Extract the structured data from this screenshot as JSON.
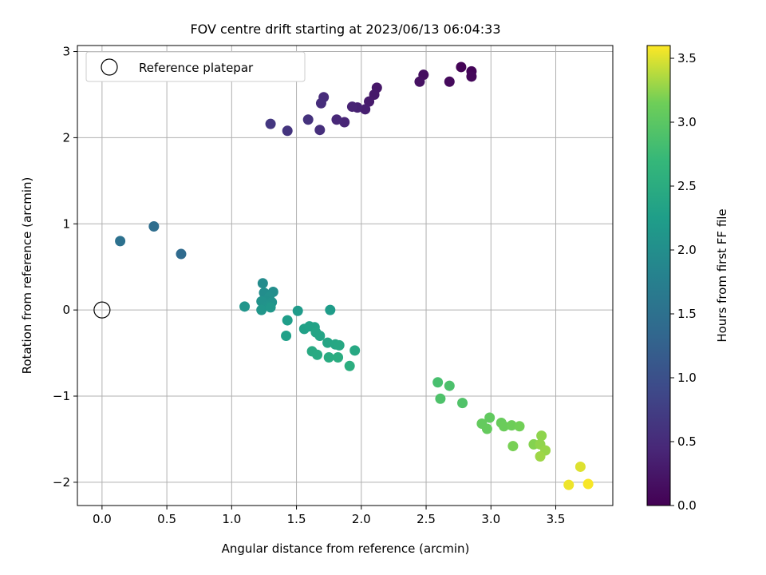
{
  "chart_data": {
    "type": "scatter",
    "title": "FOV centre drift starting at 2023/06/13 06:04:33",
    "xlabel": "Angular distance from reference (arcmin)",
    "ylabel": "Rotation from reference (arcmin)",
    "xlim": [
      -0.19,
      3.94
    ],
    "ylim": [
      -2.27,
      3.07
    ],
    "xticks": [
      0.0,
      0.5,
      1.0,
      1.5,
      2.0,
      2.5,
      3.0,
      3.5
    ],
    "xtick_labels": [
      "0.0",
      "0.5",
      "1.0",
      "1.5",
      "2.0",
      "2.5",
      "3.0",
      "3.5"
    ],
    "yticks": [
      -2,
      -1,
      0,
      1,
      2,
      3
    ],
    "ytick_labels": [
      "−2",
      "−1",
      "0",
      "1",
      "2",
      "3"
    ],
    "grid": true,
    "legend": {
      "position": "upper-left",
      "entries": [
        "Reference platepar"
      ]
    },
    "reference_point": {
      "x": 0.0,
      "y": 0.0
    },
    "colorbar": {
      "label": "Hours from first FF file",
      "colormap": "viridis",
      "range": [
        0.0,
        3.6
      ],
      "ticks": [
        0.0,
        0.5,
        1.0,
        1.5,
        2.0,
        2.5,
        3.0,
        3.5
      ],
      "tick_labels": [
        "0.0",
        "0.5",
        "1.0",
        "1.5",
        "2.0",
        "2.5",
        "3.0",
        "3.5"
      ]
    },
    "points": [
      {
        "x": 2.77,
        "y": 2.82,
        "c": 0.03
      },
      {
        "x": 2.85,
        "y": 2.77,
        "c": 0.05
      },
      {
        "x": 2.85,
        "y": 2.71,
        "c": 0.08
      },
      {
        "x": 2.68,
        "y": 2.65,
        "c": 0.1
      },
      {
        "x": 2.48,
        "y": 2.73,
        "c": 0.15
      },
      {
        "x": 2.45,
        "y": 2.65,
        "c": 0.18
      },
      {
        "x": 2.12,
        "y": 2.58,
        "c": 0.25
      },
      {
        "x": 2.1,
        "y": 2.5,
        "c": 0.28
      },
      {
        "x": 2.06,
        "y": 2.42,
        "c": 0.3
      },
      {
        "x": 2.03,
        "y": 2.33,
        "c": 0.35
      },
      {
        "x": 1.97,
        "y": 2.35,
        "c": 0.38
      },
      {
        "x": 1.93,
        "y": 2.36,
        "c": 0.4
      },
      {
        "x": 1.87,
        "y": 2.18,
        "c": 0.42
      },
      {
        "x": 1.81,
        "y": 2.21,
        "c": 0.45
      },
      {
        "x": 1.71,
        "y": 2.47,
        "c": 0.5
      },
      {
        "x": 1.69,
        "y": 2.4,
        "c": 0.52
      },
      {
        "x": 1.68,
        "y": 2.09,
        "c": 0.55
      },
      {
        "x": 1.59,
        "y": 2.21,
        "c": 0.58
      },
      {
        "x": 1.43,
        "y": 2.08,
        "c": 0.62
      },
      {
        "x": 1.3,
        "y": 2.16,
        "c": 0.65
      },
      {
        "x": 0.61,
        "y": 0.65,
        "c": 1.4
      },
      {
        "x": 0.4,
        "y": 0.97,
        "c": 1.45
      },
      {
        "x": 0.14,
        "y": 0.8,
        "c": 1.5
      },
      {
        "x": 1.24,
        "y": 0.31,
        "c": 1.95
      },
      {
        "x": 1.25,
        "y": 0.2,
        "c": 1.98
      },
      {
        "x": 1.32,
        "y": 0.21,
        "c": 2.0
      },
      {
        "x": 1.29,
        "y": 0.15,
        "c": 2.02
      },
      {
        "x": 1.27,
        "y": 0.1,
        "c": 2.03
      },
      {
        "x": 1.23,
        "y": 0.1,
        "c": 2.05
      },
      {
        "x": 1.31,
        "y": 0.09,
        "c": 2.06
      },
      {
        "x": 1.28,
        "y": 0.05,
        "c": 2.08
      },
      {
        "x": 1.1,
        "y": 0.04,
        "c": 2.1
      },
      {
        "x": 1.23,
        "y": 0.0,
        "c": 2.12
      },
      {
        "x": 1.3,
        "y": 0.03,
        "c": 2.13
      },
      {
        "x": 1.51,
        "y": -0.01,
        "c": 2.2
      },
      {
        "x": 1.76,
        "y": 0.0,
        "c": 2.22
      },
      {
        "x": 1.43,
        "y": -0.12,
        "c": 2.25
      },
      {
        "x": 1.42,
        "y": -0.3,
        "c": 2.28
      },
      {
        "x": 1.56,
        "y": -0.22,
        "c": 2.3
      },
      {
        "x": 1.6,
        "y": -0.19,
        "c": 2.32
      },
      {
        "x": 1.64,
        "y": -0.2,
        "c": 2.33
      },
      {
        "x": 1.65,
        "y": -0.26,
        "c": 2.35
      },
      {
        "x": 1.68,
        "y": -0.3,
        "c": 2.36
      },
      {
        "x": 1.74,
        "y": -0.38,
        "c": 2.38
      },
      {
        "x": 1.8,
        "y": -0.4,
        "c": 2.4
      },
      {
        "x": 1.83,
        "y": -0.41,
        "c": 2.41
      },
      {
        "x": 1.95,
        "y": -0.47,
        "c": 2.43
      },
      {
        "x": 1.62,
        "y": -0.48,
        "c": 2.45
      },
      {
        "x": 1.66,
        "y": -0.52,
        "c": 2.46
      },
      {
        "x": 1.75,
        "y": -0.55,
        "c": 2.48
      },
      {
        "x": 1.82,
        "y": -0.55,
        "c": 2.5
      },
      {
        "x": 1.91,
        "y": -0.65,
        "c": 2.52
      },
      {
        "x": 2.59,
        "y": -0.84,
        "c": 2.85
      },
      {
        "x": 2.68,
        "y": -0.88,
        "c": 2.88
      },
      {
        "x": 2.61,
        "y": -1.03,
        "c": 2.9
      },
      {
        "x": 2.78,
        "y": -1.08,
        "c": 2.92
      },
      {
        "x": 2.99,
        "y": -1.25,
        "c": 3.05
      },
      {
        "x": 2.93,
        "y": -1.32,
        "c": 3.07
      },
      {
        "x": 2.97,
        "y": -1.38,
        "c": 3.08
      },
      {
        "x": 3.08,
        "y": -1.31,
        "c": 3.1
      },
      {
        "x": 3.1,
        "y": -1.35,
        "c": 3.12
      },
      {
        "x": 3.16,
        "y": -1.34,
        "c": 3.14
      },
      {
        "x": 3.22,
        "y": -1.35,
        "c": 3.16
      },
      {
        "x": 3.17,
        "y": -1.58,
        "c": 3.18
      },
      {
        "x": 3.33,
        "y": -1.56,
        "c": 3.22
      },
      {
        "x": 3.39,
        "y": -1.46,
        "c": 3.25
      },
      {
        "x": 3.38,
        "y": -1.56,
        "c": 3.26
      },
      {
        "x": 3.42,
        "y": -1.63,
        "c": 3.28
      },
      {
        "x": 3.38,
        "y": -1.7,
        "c": 3.3
      },
      {
        "x": 3.69,
        "y": -1.82,
        "c": 3.5
      },
      {
        "x": 3.6,
        "y": -2.03,
        "c": 3.55
      },
      {
        "x": 3.75,
        "y": -2.02,
        "c": 3.58
      }
    ]
  }
}
